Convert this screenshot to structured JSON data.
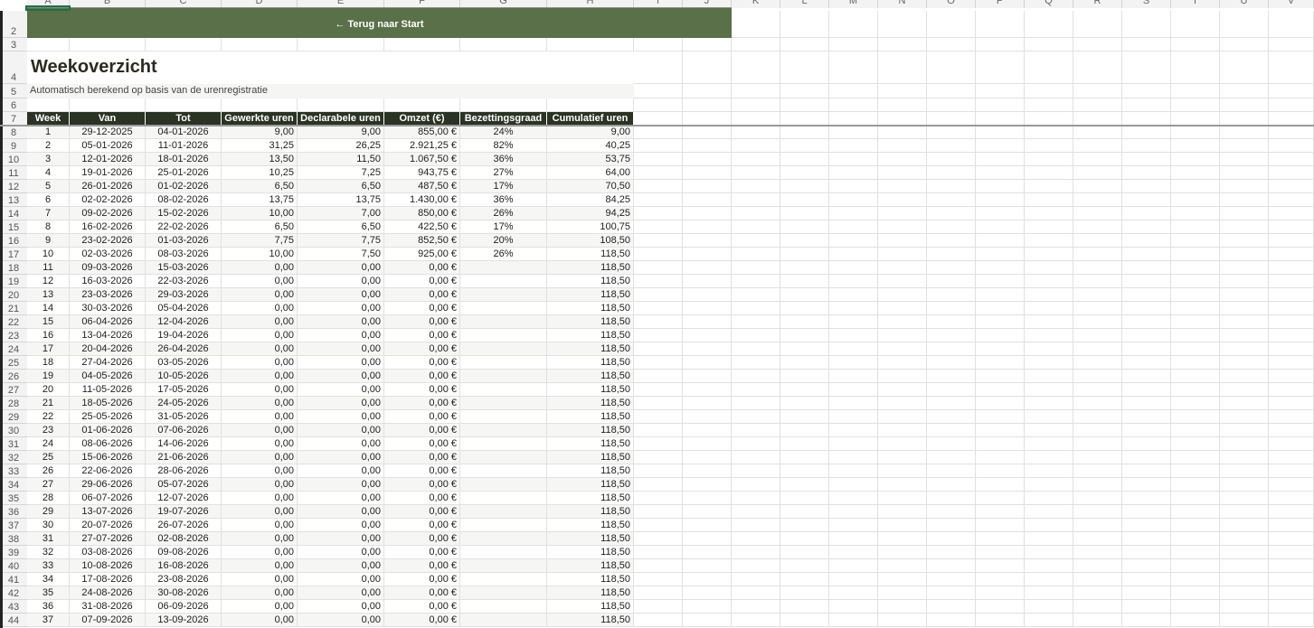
{
  "columns": [
    "A",
    "B",
    "C",
    "D",
    "E",
    "F",
    "G",
    "H",
    "I",
    "J",
    "K",
    "L",
    "M",
    "N",
    "O",
    "P",
    "Q",
    "R",
    "S",
    "T",
    "U",
    "V"
  ],
  "row_numbers": [
    "2",
    "3",
    "4",
    "5",
    "6",
    "7",
    "8",
    "9",
    "10",
    "11",
    "12",
    "13",
    "14",
    "15",
    "16",
    "17",
    "18",
    "19",
    "20",
    "21",
    "22",
    "23",
    "24",
    "25",
    "26",
    "27",
    "28",
    "29",
    "30",
    "31",
    "32",
    "33",
    "34",
    "35",
    "36",
    "37",
    "38",
    "39",
    "40",
    "41",
    "42",
    "43",
    "44"
  ],
  "banner": {
    "label": "← Terug naar Start",
    "color": "#5a7049"
  },
  "title": "Weekoverzicht",
  "subtitle": "Automatisch berekend op basis van de urenregistratie",
  "table": {
    "header_color": "#2b3324",
    "headers": [
      "Week",
      "Van",
      "Tot",
      "Gewerkte uren",
      "Declarabele uren",
      "Omzet (€)",
      "Bezettingsgraad",
      "Cumulatief uren"
    ],
    "rows": [
      [
        "1",
        "29-12-2025",
        "04-01-2026",
        "9,00",
        "9,00",
        "855,00 €",
        "24%",
        "9,00"
      ],
      [
        "2",
        "05-01-2026",
        "11-01-2026",
        "31,25",
        "26,25",
        "2.921,25 €",
        "82%",
        "40,25"
      ],
      [
        "3",
        "12-01-2026",
        "18-01-2026",
        "13,50",
        "11,50",
        "1.067,50 €",
        "36%",
        "53,75"
      ],
      [
        "4",
        "19-01-2026",
        "25-01-2026",
        "10,25",
        "7,25",
        "943,75 €",
        "27%",
        "64,00"
      ],
      [
        "5",
        "26-01-2026",
        "01-02-2026",
        "6,50",
        "6,50",
        "487,50 €",
        "17%",
        "70,50"
      ],
      [
        "6",
        "02-02-2026",
        "08-02-2026",
        "13,75",
        "13,75",
        "1.430,00 €",
        "36%",
        "84,25"
      ],
      [
        "7",
        "09-02-2026",
        "15-02-2026",
        "10,00",
        "7,00",
        "850,00 €",
        "26%",
        "94,25"
      ],
      [
        "8",
        "16-02-2026",
        "22-02-2026",
        "6,50",
        "6,50",
        "422,50 €",
        "17%",
        "100,75"
      ],
      [
        "9",
        "23-02-2026",
        "01-03-2026",
        "7,75",
        "7,75",
        "852,50 €",
        "20%",
        "108,50"
      ],
      [
        "10",
        "02-03-2026",
        "08-03-2026",
        "10,00",
        "7,50",
        "925,00 €",
        "26%",
        "118,50"
      ],
      [
        "11",
        "09-03-2026",
        "15-03-2026",
        "0,00",
        "0,00",
        "0,00 €",
        "",
        "118,50"
      ],
      [
        "12",
        "16-03-2026",
        "22-03-2026",
        "0,00",
        "0,00",
        "0,00 €",
        "",
        "118,50"
      ],
      [
        "13",
        "23-03-2026",
        "29-03-2026",
        "0,00",
        "0,00",
        "0,00 €",
        "",
        "118,50"
      ],
      [
        "14",
        "30-03-2026",
        "05-04-2026",
        "0,00",
        "0,00",
        "0,00 €",
        "",
        "118,50"
      ],
      [
        "15",
        "06-04-2026",
        "12-04-2026",
        "0,00",
        "0,00",
        "0,00 €",
        "",
        "118,50"
      ],
      [
        "16",
        "13-04-2026",
        "19-04-2026",
        "0,00",
        "0,00",
        "0,00 €",
        "",
        "118,50"
      ],
      [
        "17",
        "20-04-2026",
        "26-04-2026",
        "0,00",
        "0,00",
        "0,00 €",
        "",
        "118,50"
      ],
      [
        "18",
        "27-04-2026",
        "03-05-2026",
        "0,00",
        "0,00",
        "0,00 €",
        "",
        "118,50"
      ],
      [
        "19",
        "04-05-2026",
        "10-05-2026",
        "0,00",
        "0,00",
        "0,00 €",
        "",
        "118,50"
      ],
      [
        "20",
        "11-05-2026",
        "17-05-2026",
        "0,00",
        "0,00",
        "0,00 €",
        "",
        "118,50"
      ],
      [
        "21",
        "18-05-2026",
        "24-05-2026",
        "0,00",
        "0,00",
        "0,00 €",
        "",
        "118,50"
      ],
      [
        "22",
        "25-05-2026",
        "31-05-2026",
        "0,00",
        "0,00",
        "0,00 €",
        "",
        "118,50"
      ],
      [
        "23",
        "01-06-2026",
        "07-06-2026",
        "0,00",
        "0,00",
        "0,00 €",
        "",
        "118,50"
      ],
      [
        "24",
        "08-06-2026",
        "14-06-2026",
        "0,00",
        "0,00",
        "0,00 €",
        "",
        "118,50"
      ],
      [
        "25",
        "15-06-2026",
        "21-06-2026",
        "0,00",
        "0,00",
        "0,00 €",
        "",
        "118,50"
      ],
      [
        "26",
        "22-06-2026",
        "28-06-2026",
        "0,00",
        "0,00",
        "0,00 €",
        "",
        "118,50"
      ],
      [
        "27",
        "29-06-2026",
        "05-07-2026",
        "0,00",
        "0,00",
        "0,00 €",
        "",
        "118,50"
      ],
      [
        "28",
        "06-07-2026",
        "12-07-2026",
        "0,00",
        "0,00",
        "0,00 €",
        "",
        "118,50"
      ],
      [
        "29",
        "13-07-2026",
        "19-07-2026",
        "0,00",
        "0,00",
        "0,00 €",
        "",
        "118,50"
      ],
      [
        "30",
        "20-07-2026",
        "26-07-2026",
        "0,00",
        "0,00",
        "0,00 €",
        "",
        "118,50"
      ],
      [
        "31",
        "27-07-2026",
        "02-08-2026",
        "0,00",
        "0,00",
        "0,00 €",
        "",
        "118,50"
      ],
      [
        "32",
        "03-08-2026",
        "09-08-2026",
        "0,00",
        "0,00",
        "0,00 €",
        "",
        "118,50"
      ],
      [
        "33",
        "10-08-2026",
        "16-08-2026",
        "0,00",
        "0,00",
        "0,00 €",
        "",
        "118,50"
      ],
      [
        "34",
        "17-08-2026",
        "23-08-2026",
        "0,00",
        "0,00",
        "0,00 €",
        "",
        "118,50"
      ],
      [
        "35",
        "24-08-2026",
        "30-08-2026",
        "0,00",
        "0,00",
        "0,00 €",
        "",
        "118,50"
      ],
      [
        "36",
        "31-08-2026",
        "06-09-2026",
        "0,00",
        "0,00",
        "0,00 €",
        "",
        "118,50"
      ],
      [
        "37",
        "07-09-2026",
        "13-09-2026",
        "0,00",
        "0,00",
        "0,00 €",
        "",
        "118,50"
      ]
    ]
  }
}
